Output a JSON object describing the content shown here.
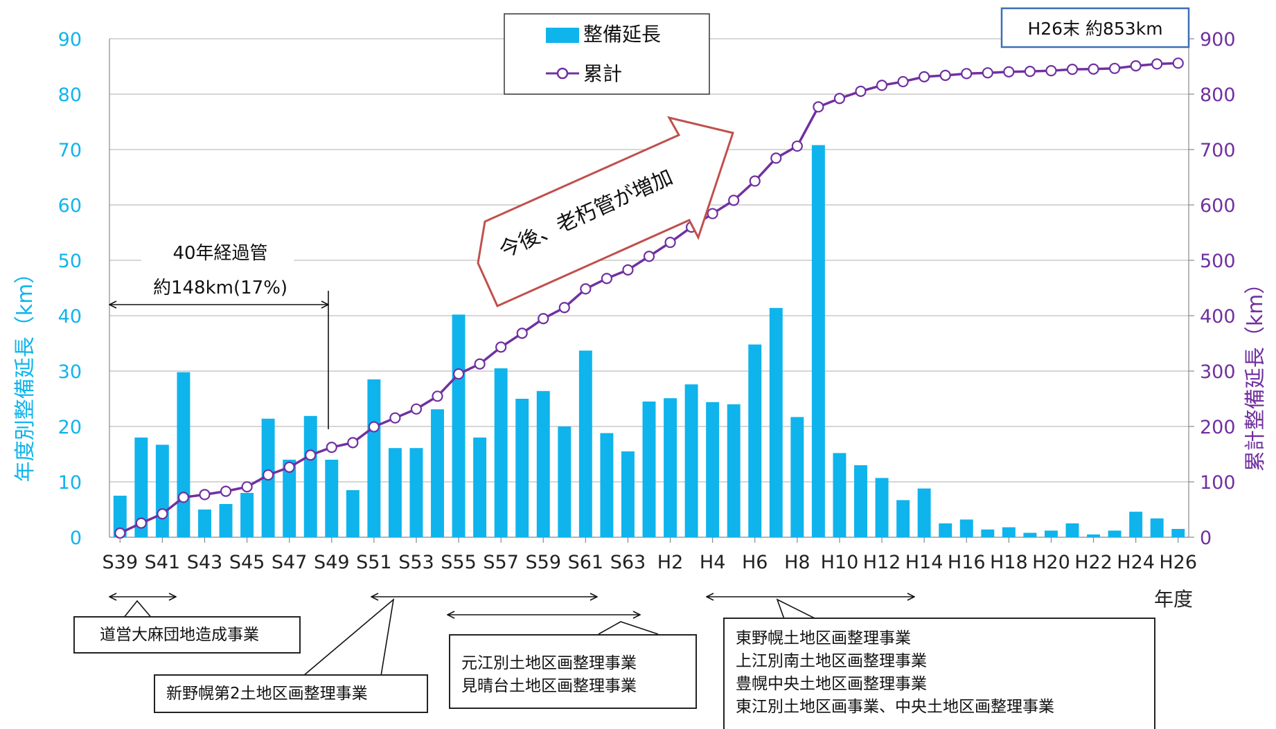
{
  "chart_data": {
    "type": "bar+line",
    "title": "",
    "xlabel": "年度",
    "ylabel_left": "年度別整備延長（km）",
    "ylabel_right": "累計整備延長（km）",
    "ylim_left": [
      0,
      90
    ],
    "ylim_right": [
      0,
      900
    ],
    "yticks_left": [
      "0",
      "10",
      "20",
      "30",
      "40",
      "50",
      "60",
      "70",
      "80",
      "90"
    ],
    "yticks_right": [
      "0",
      "100",
      "200",
      "300",
      "400",
      "500",
      "600",
      "700",
      "800",
      "900"
    ],
    "grid": true,
    "legend_placement": "top-center",
    "categories": [
      "S39",
      "S40",
      "S41",
      "S42",
      "S43",
      "S44",
      "S45",
      "S46",
      "S47",
      "S48",
      "S49",
      "S50",
      "S51",
      "S52",
      "S53",
      "S54",
      "S55",
      "S56",
      "S57",
      "S58",
      "S59",
      "S60",
      "S61",
      "S62",
      "S63",
      "H1",
      "H2",
      "H3",
      "H4",
      "H5",
      "H6",
      "H7",
      "H8",
      "H9",
      "H10",
      "H11",
      "H12",
      "H13",
      "H14",
      "H15",
      "H16",
      "H17",
      "H18",
      "H19",
      "H20",
      "H21",
      "H22",
      "H23",
      "H24",
      "H25",
      "H26"
    ],
    "xtick_labels": [
      "S39",
      "",
      "S41",
      "",
      "S43",
      "",
      "S45",
      "",
      "S47",
      "",
      "S49",
      "",
      "S51",
      "",
      "S53",
      "",
      "S55",
      "",
      "S57",
      "",
      "S59",
      "",
      "S61",
      "",
      "S63",
      "",
      "H2",
      "",
      "H4",
      "",
      "H6",
      "",
      "H8",
      "",
      "H10",
      "",
      "H12",
      "",
      "H14",
      "",
      "H16",
      "",
      "H18",
      "",
      "H20",
      "",
      "H22",
      "",
      "H24",
      "",
      "H26"
    ],
    "series": [
      {
        "name": "整備延長",
        "type": "bar",
        "axis": "left",
        "color": "#0fb4ec",
        "values": [
          7.5,
          18,
          16.7,
          29.8,
          5,
          6,
          8,
          21.4,
          14,
          21.9,
          14,
          8.5,
          28.5,
          16.1,
          16.1,
          23.1,
          40.2,
          18,
          30.5,
          25,
          26.4,
          20,
          33.7,
          18.8,
          15.5,
          24.5,
          25.1,
          27.6,
          24.4,
          24,
          34.8,
          41.4,
          21.7,
          70.8,
          15.2,
          13,
          10.7,
          6.7,
          8.8,
          2.5,
          3.2,
          1.4,
          1.8,
          0.8,
          1.2,
          2.5,
          0.5,
          1.2,
          4.6,
          3.4,
          1.5
        ]
      },
      {
        "name": "累計",
        "type": "line",
        "axis": "right",
        "color": "#7030a0",
        "values": [
          7.5,
          25.5,
          42.2,
          72,
          77,
          83,
          91,
          112.4,
          126.4,
          148.3,
          162.3,
          170.8,
          199.3,
          215.4,
          231.5,
          254.6,
          294.8,
          312.8,
          343.3,
          368.3,
          394.7,
          414.7,
          448.4,
          467.2,
          482.7,
          507.2,
          532.3,
          559.9,
          584.3,
          608.3,
          643.1,
          684.5,
          706.2,
          777,
          792.2,
          805.2,
          815.9,
          822.6,
          831.4,
          833.9,
          837.1,
          838.5,
          840.3,
          841.1,
          842.3,
          844.8,
          845.3,
          846.5,
          851.1,
          854.5,
          856
        ]
      }
    ],
    "annotations": {
      "total_box": "H26末 約853km",
      "aging_label_1": "40年経過管",
      "aging_label_2": "約148km(17%)",
      "arrow_text": "今後、老朽管が増加"
    }
  },
  "projects": {
    "p1": "道営大麻団地造成事業",
    "p2": "新野幌第2土地区画整理事業",
    "p3_lines": [
      "元江別土地区画整理事業",
      "見晴台土地区画整理事業"
    ],
    "p4_lines": [
      "東野幌土地区画整理事業",
      "上江別南土地区画整理事業",
      "豊幌中央土地区画整理事業",
      "東江別土地区画事業、中央土地区画整理事業"
    ]
  }
}
